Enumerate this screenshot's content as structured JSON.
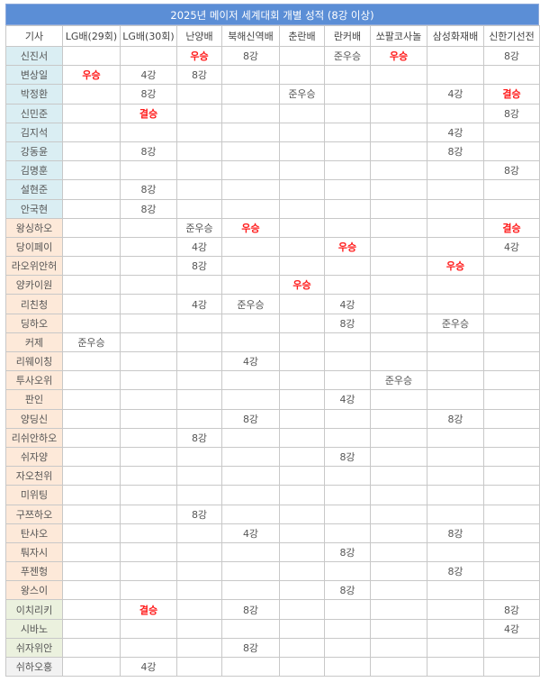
{
  "title": "2025년 메이저 세계대회 개별 성적 (8강 이상)",
  "columns": [
    "기사",
    "LG배(29회)",
    "LG배(30회)",
    "난양배",
    "북해신역배",
    "춘란배",
    "란커배",
    "쏘팔코사놀",
    "삼성화재배",
    "신한기선전"
  ],
  "colors": {
    "highlight": "#ff1a1a",
    "header": "#5b8ed6",
    "korea": "#daeef3",
    "china": "#fde9d9",
    "japan": "#ebf1de",
    "taiwan": "#f2f2f2"
  },
  "highlight_results": [
    "우승",
    "결승"
  ],
  "rows": [
    {
      "name": "신진서",
      "group": "kr",
      "results": [
        "",
        "",
        "우승",
        "8강",
        "",
        "준우승",
        "우승",
        "",
        "8강"
      ]
    },
    {
      "name": "변상일",
      "group": "kr",
      "results": [
        "우승",
        "4강",
        "8강",
        "",
        "",
        "",
        "",
        "",
        ""
      ]
    },
    {
      "name": "박정환",
      "group": "kr",
      "results": [
        "",
        "8강",
        "",
        "",
        "준우승",
        "",
        "",
        "4강",
        "결승"
      ]
    },
    {
      "name": "신민준",
      "group": "kr",
      "results": [
        "",
        "결승",
        "",
        "",
        "",
        "",
        "",
        "",
        "8강"
      ]
    },
    {
      "name": "김지석",
      "group": "kr",
      "results": [
        "",
        "",
        "",
        "",
        "",
        "",
        "",
        "4강",
        ""
      ]
    },
    {
      "name": "강동윤",
      "group": "kr",
      "results": [
        "",
        "8강",
        "",
        "",
        "",
        "",
        "",
        "8강",
        ""
      ]
    },
    {
      "name": "김명훈",
      "group": "kr",
      "results": [
        "",
        "",
        "",
        "",
        "",
        "",
        "",
        "",
        "8강"
      ]
    },
    {
      "name": "설현준",
      "group": "kr",
      "results": [
        "",
        "8강",
        "",
        "",
        "",
        "",
        "",
        "",
        ""
      ]
    },
    {
      "name": "안국현",
      "group": "kr",
      "results": [
        "",
        "8강",
        "",
        "",
        "",
        "",
        "",
        "",
        ""
      ]
    },
    {
      "name": "왕싱하오",
      "group": "cn",
      "results": [
        "",
        "",
        "준우승",
        "우승",
        "",
        "",
        "",
        "",
        "결승"
      ]
    },
    {
      "name": "당이페이",
      "group": "cn",
      "results": [
        "",
        "",
        "4강",
        "",
        "",
        "우승",
        "",
        "",
        "4강"
      ]
    },
    {
      "name": "라오위안허",
      "group": "cn",
      "results": [
        "",
        "",
        "8강",
        "",
        "",
        "",
        "",
        "우승",
        ""
      ]
    },
    {
      "name": "양카이원",
      "group": "cn",
      "results": [
        "",
        "",
        "",
        "",
        "우승",
        "",
        "",
        "",
        ""
      ]
    },
    {
      "name": "리친청",
      "group": "cn",
      "results": [
        "",
        "",
        "4강",
        "준우승",
        "",
        "4강",
        "",
        "",
        ""
      ]
    },
    {
      "name": "딩하오",
      "group": "cn",
      "results": [
        "",
        "",
        "",
        "",
        "",
        "8강",
        "",
        "준우승",
        ""
      ]
    },
    {
      "name": "커제",
      "group": "cn",
      "results": [
        "준우승",
        "",
        "",
        "",
        "",
        "",
        "",
        "",
        ""
      ]
    },
    {
      "name": "리웨이칭",
      "group": "cn",
      "results": [
        "",
        "",
        "",
        "4강",
        "",
        "",
        "",
        "",
        ""
      ]
    },
    {
      "name": "투사오위",
      "group": "cn",
      "results": [
        "",
        "",
        "",
        "",
        "",
        "",
        "준우승",
        "",
        ""
      ]
    },
    {
      "name": "판인",
      "group": "cn",
      "results": [
        "",
        "",
        "",
        "",
        "",
        "4강",
        "",
        "",
        ""
      ]
    },
    {
      "name": "양딩신",
      "group": "cn",
      "results": [
        "",
        "",
        "",
        "8강",
        "",
        "",
        "",
        "8강",
        ""
      ]
    },
    {
      "name": "리쉬안하오",
      "group": "cn",
      "results": [
        "",
        "",
        "8강",
        "",
        "",
        "",
        "",
        "",
        ""
      ]
    },
    {
      "name": "쉬자양",
      "group": "cn",
      "results": [
        "",
        "",
        "",
        "",
        "",
        "8강",
        "",
        "",
        ""
      ]
    },
    {
      "name": "자오천위",
      "group": "cn",
      "results": [
        "",
        "",
        "",
        "",
        "",
        "",
        "",
        "",
        ""
      ]
    },
    {
      "name": "미위팅",
      "group": "cn",
      "results": [
        "",
        "",
        "",
        "",
        "",
        "",
        "",
        "",
        ""
      ]
    },
    {
      "name": "구쯔하오",
      "group": "cn",
      "results": [
        "",
        "",
        "8강",
        "",
        "",
        "",
        "",
        "",
        ""
      ]
    },
    {
      "name": "탄샤오",
      "group": "cn",
      "results": [
        "",
        "",
        "",
        "4강",
        "",
        "",
        "",
        "8강",
        ""
      ]
    },
    {
      "name": "퉈자시",
      "group": "cn",
      "results": [
        "",
        "",
        "",
        "",
        "",
        "8강",
        "",
        "",
        ""
      ]
    },
    {
      "name": "푸젠헝",
      "group": "cn",
      "results": [
        "",
        "",
        "",
        "",
        "",
        "",
        "",
        "8강",
        ""
      ]
    },
    {
      "name": "왕스이",
      "group": "cn",
      "results": [
        "",
        "",
        "",
        "",
        "",
        "8강",
        "",
        "",
        ""
      ]
    },
    {
      "name": "이치리키",
      "group": "jp",
      "results": [
        "",
        "결승",
        "",
        "8강",
        "",
        "",
        "",
        "",
        "8강"
      ]
    },
    {
      "name": "시바노",
      "group": "jp",
      "results": [
        "",
        "",
        "",
        "",
        "",
        "",
        "",
        "",
        "4강"
      ]
    },
    {
      "name": "쉬자위안",
      "group": "jp",
      "results": [
        "",
        "",
        "",
        "8강",
        "",
        "",
        "",
        "",
        ""
      ]
    },
    {
      "name": "쉬하오훙",
      "group": "tw",
      "results": [
        "",
        "4강",
        "",
        "",
        "",
        "",
        "",
        "",
        ""
      ]
    }
  ]
}
